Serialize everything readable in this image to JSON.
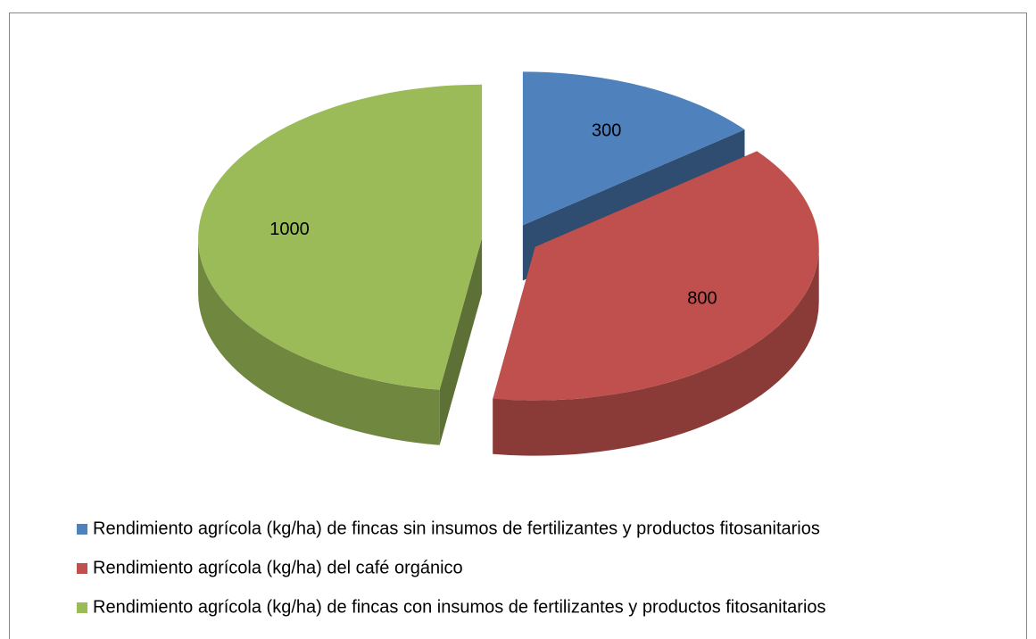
{
  "chart_data": {
    "type": "pie",
    "categories": [
      "Rendimiento agrícola (kg/ha) de fincas sin insumos de fertilizantes y productos fitosanitarios",
      "Rendimiento agrícola (kg/ha) del café orgánico",
      "Rendimiento agrícola (kg/ha) de fincas con insumos de fertilizantes y productos fitosanitarios"
    ],
    "values": [
      300,
      800,
      1000
    ],
    "colors": [
      "#4f81bd",
      "#c0504d",
      "#9bbb59"
    ],
    "legend": "bottom"
  }
}
